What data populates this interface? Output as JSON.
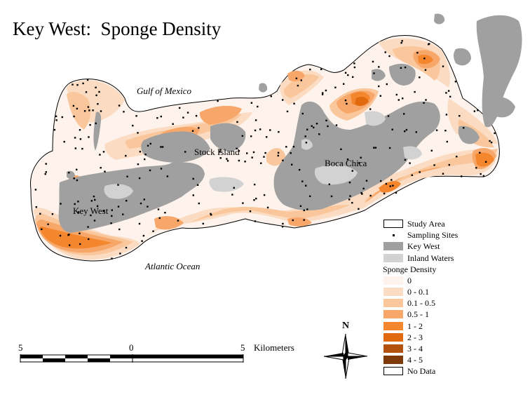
{
  "title": "Key West:  Sponge Density",
  "places": {
    "gulf": "Gulf of Mexico",
    "atlantic": "Atlantic Ocean",
    "key_west": "Key West",
    "stock_island": "Stock Island",
    "boca_chica": "Boca Chica"
  },
  "legend": {
    "study_area": "Study Area",
    "sampling_sites": "Sampling Sites",
    "key_west": "Key West",
    "inland_waters": "Inland Waters",
    "heading": "Sponge Density",
    "classes": [
      {
        "label": "0",
        "color": "#fdf3ec"
      },
      {
        "label": "0 - 0.1",
        "color": "#fbdcc2"
      },
      {
        "label": "0.1 - 0.5",
        "color": "#f9c79b"
      },
      {
        "label": "0.5 - 1",
        "color": "#f7a76a"
      },
      {
        "label": "1 - 2",
        "color": "#f4862e"
      },
      {
        "label": "2 - 3",
        "color": "#e06a0d"
      },
      {
        "label": "3 - 4",
        "color": "#b2520c"
      },
      {
        "label": "4 - 5",
        "color": "#7e3a08"
      }
    ],
    "no_data": "No Data"
  },
  "colors": {
    "land": "#a0a0a0",
    "inland_water": "#d2d2d2",
    "no_data": "#ffffff"
  },
  "north_arrow": {
    "label": "N"
  },
  "scale_bar": {
    "left_label": "5",
    "mid_label": "0",
    "right_label": "5",
    "unit": "Kilometers"
  }
}
